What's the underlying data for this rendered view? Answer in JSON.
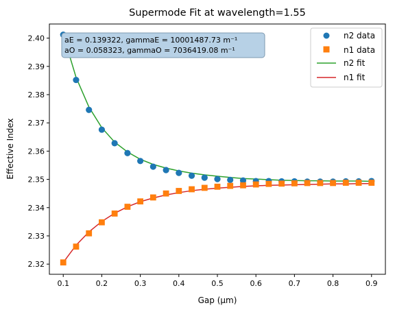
{
  "chart_data": {
    "type": "scatter",
    "title": "Supermode Fit at wavelength=1.55",
    "xlabel": "Gap (µm)",
    "ylabel": "Effective Index",
    "xlim": [
      0.064,
      0.936
    ],
    "ylim": [
      2.3164,
      2.405
    ],
    "xticks": [
      0.1,
      0.2,
      0.3,
      0.4,
      0.5,
      0.6,
      0.7,
      0.8,
      0.9
    ],
    "xtick_labels": [
      "0.1",
      "0.2",
      "0.3",
      "0.4",
      "0.5",
      "0.6",
      "0.7",
      "0.8",
      "0.9"
    ],
    "yticks": [
      2.32,
      2.33,
      2.34,
      2.35,
      2.36,
      2.37,
      2.38,
      2.39,
      2.4
    ],
    "ytick_labels": [
      "2.32",
      "2.33",
      "2.34",
      "2.35",
      "2.36",
      "2.37",
      "2.38",
      "2.39",
      "2.40"
    ],
    "grid": false,
    "legend_position": "top-right",
    "annotation_lines": [
      "aE = 0.139322, gammaE = 10001487.73 m⁻¹",
      "aO = 0.058323, gammaO = 7036419.08 m⁻¹"
    ],
    "annotation_style": {
      "fill": "#b7d1e6",
      "stroke": "#7e99b0"
    },
    "x": [
      0.1,
      0.1333,
      0.1667,
      0.2,
      0.2333,
      0.2667,
      0.3,
      0.3333,
      0.3667,
      0.4,
      0.4333,
      0.4667,
      0.5,
      0.5333,
      0.5667,
      0.6,
      0.6333,
      0.6667,
      0.7,
      0.7333,
      0.7667,
      0.8,
      0.8333,
      0.8667,
      0.9
    ],
    "series": [
      {
        "name": "n2 data",
        "kind": "scatter",
        "marker": "circle",
        "color": "#1f77b4",
        "values": [
          2.4012,
          2.3852,
          2.3746,
          2.3676,
          2.3628,
          2.3593,
          2.3565,
          2.3545,
          2.3533,
          2.3523,
          2.3513,
          2.3506,
          2.3501,
          2.3498,
          2.3496,
          2.3494,
          2.3494,
          2.3493,
          2.3493,
          2.3492,
          2.3492,
          2.3492,
          2.3493,
          2.3493,
          2.3494
        ]
      },
      {
        "name": "n1 data",
        "kind": "scatter",
        "marker": "square",
        "color": "#ff7f0e",
        "values": [
          2.3206,
          2.3262,
          2.3309,
          2.3348,
          2.3379,
          2.3403,
          2.3422,
          2.3436,
          2.345,
          2.3459,
          2.3465,
          2.347,
          2.3474,
          2.3477,
          2.3479,
          2.3482,
          2.3484,
          2.3485,
          2.3486,
          2.3487,
          2.3487,
          2.3487,
          2.3488,
          2.3488,
          2.3488
        ]
      },
      {
        "name": "n2 fit",
        "kind": "line",
        "color": "#2ca02c",
        "values": [
          2.4012,
          2.3861,
          2.3756,
          2.3683,
          2.3632,
          2.3597,
          2.3571,
          2.3553,
          2.354,
          2.353,
          2.3522,
          2.3516,
          2.3511,
          2.3507,
          2.3503,
          2.3501,
          2.3499,
          2.3497,
          2.3496,
          2.3495,
          2.3495,
          2.3494,
          2.3494,
          2.3494,
          2.3493
        ]
      },
      {
        "name": "n1 fit",
        "kind": "line",
        "color": "#d62728",
        "values": [
          2.3206,
          2.3267,
          2.3314,
          2.3351,
          2.338,
          2.3403,
          2.3421,
          2.3434,
          2.3445,
          2.3453,
          2.346,
          2.3465,
          2.3469,
          2.3472,
          2.3475,
          2.3477,
          2.3479,
          2.348,
          2.3481,
          2.3482,
          2.3483,
          2.3484,
          2.3484,
          2.3485,
          2.3485
        ]
      }
    ]
  }
}
